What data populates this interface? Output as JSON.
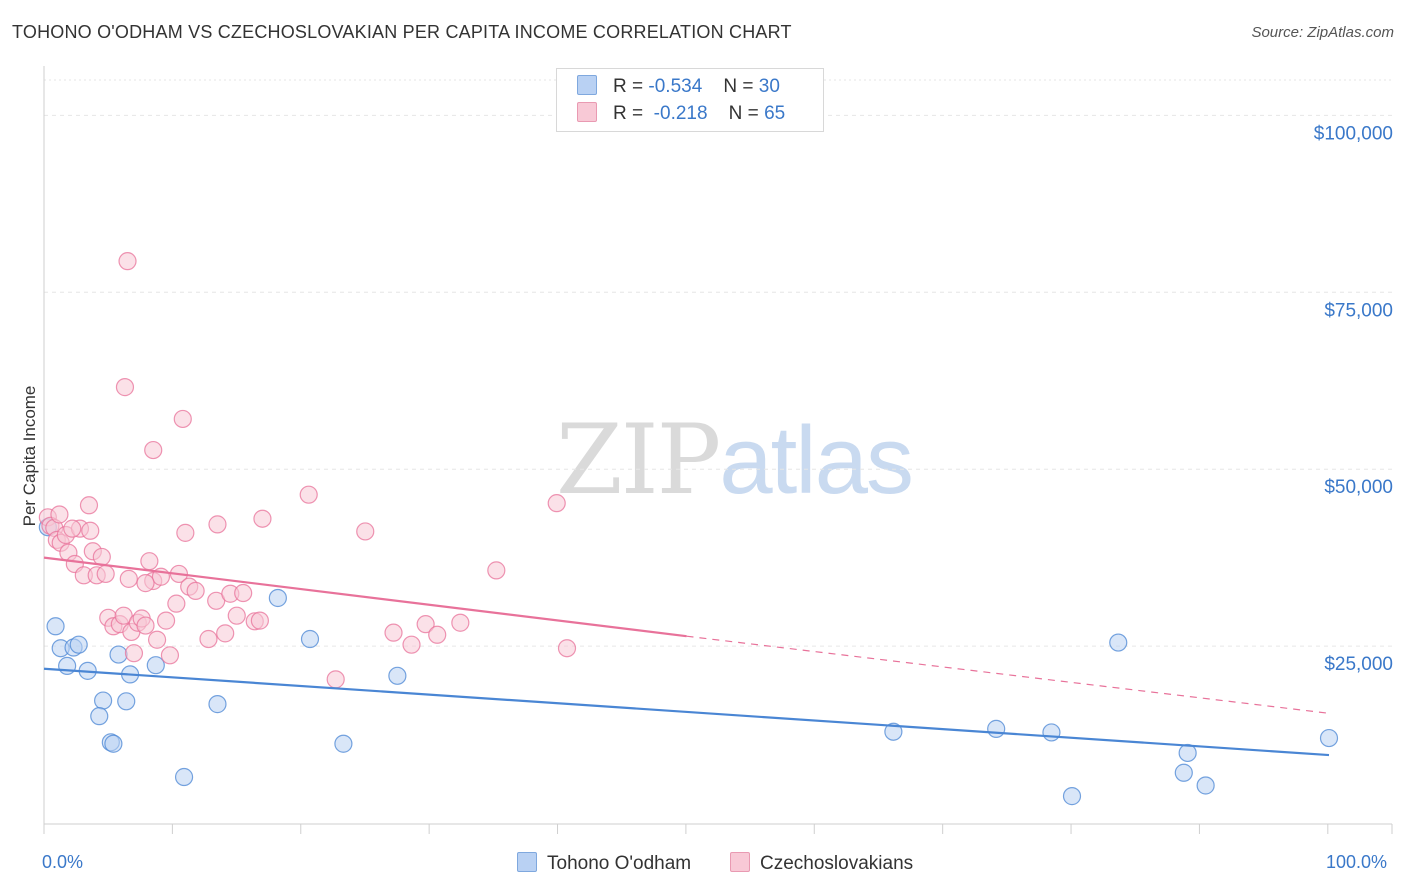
{
  "header": {
    "title": "TOHONO O'ODHAM VS CZECHOSLOVAKIAN PER CAPITA INCOME CORRELATION CHART",
    "source": "Source: ZipAtlas.com"
  },
  "watermark": {
    "zip": "ZIP",
    "atlas": "atlas"
  },
  "legend_top": {
    "rows": [
      {
        "r_label": "R =",
        "r_value": "-0.534",
        "n_label": "N =",
        "n_value": "30",
        "color": "#4a86d4"
      },
      {
        "r_label": "R =",
        "r_value": "-0.218",
        "n_label": "N =",
        "n_value": "65",
        "color": "#e8729a"
      }
    ]
  },
  "legend_bottom": {
    "items": [
      {
        "label": "Tohono O'odham",
        "color": "#4a86d4"
      },
      {
        "label": "Czechoslovakians",
        "color": "#e8729a"
      }
    ]
  },
  "chart_data": {
    "type": "scatter",
    "title": "TOHONO O'ODHAM VS CZECHOSLOVAKIAN PER CAPITA INCOME CORRELATION CHART",
    "xlabel": "",
    "ylabel": "Per Capita Income",
    "xlim": [
      0,
      100
    ],
    "ylim": [
      0,
      105000
    ],
    "x_tick_labels": {
      "min": "0.0%",
      "max": "100.0%"
    },
    "y_ticks": [
      {
        "value": 25000,
        "label": "$25,000"
      },
      {
        "value": 50000,
        "label": "$50,000"
      },
      {
        "value": 75000,
        "label": "$75,000"
      },
      {
        "value": 100000,
        "label": "$100,000"
      }
    ],
    "grid": true,
    "series": [
      {
        "name": "Tohono O'odham",
        "color": "#4a86d4",
        "fill": "#b9d1f3",
        "points": [
          [
            0.3,
            41800
          ],
          [
            0.9,
            27800
          ],
          [
            1.3,
            24700
          ],
          [
            1.8,
            22200
          ],
          [
            2.3,
            24800
          ],
          [
            2.7,
            25200
          ],
          [
            3.4,
            21500
          ],
          [
            4.6,
            17300
          ],
          [
            4.3,
            15100
          ],
          [
            5.2,
            11400
          ],
          [
            5.4,
            11200
          ],
          [
            5.8,
            23800
          ],
          [
            6.4,
            17200
          ],
          [
            6.7,
            21000
          ],
          [
            8.7,
            22300
          ],
          [
            10.9,
            6500
          ],
          [
            13.5,
            16800
          ],
          [
            18.2,
            31800
          ],
          [
            20.7,
            26000
          ],
          [
            23.3,
            11200
          ],
          [
            27.5,
            20800
          ],
          [
            83.6,
            25500
          ],
          [
            66.1,
            12900
          ],
          [
            74.1,
            13300
          ],
          [
            78.4,
            12800
          ],
          [
            80.0,
            3800
          ],
          [
            88.7,
            7100
          ],
          [
            89.0,
            9900
          ],
          [
            90.4,
            5300
          ],
          [
            100.0,
            12000
          ]
        ],
        "trend": {
          "x": [
            0,
            100
          ],
          "y": [
            21800,
            9600
          ],
          "dashed_to": null
        }
      },
      {
        "name": "Czechoslovakians",
        "color": "#e8729a",
        "fill": "#f8c9d6",
        "points": [
          [
            0.3,
            43200
          ],
          [
            0.5,
            42000
          ],
          [
            0.8,
            41700
          ],
          [
            1.0,
            40000
          ],
          [
            1.3,
            39600
          ],
          [
            1.7,
            40700
          ],
          [
            1.9,
            38200
          ],
          [
            2.4,
            36600
          ],
          [
            2.8,
            41600
          ],
          [
            3.1,
            35000
          ],
          [
            3.5,
            44900
          ],
          [
            3.8,
            38400
          ],
          [
            4.1,
            35000
          ],
          [
            4.5,
            37600
          ],
          [
            4.8,
            35200
          ],
          [
            5.0,
            29000
          ],
          [
            5.4,
            27800
          ],
          [
            5.9,
            28100
          ],
          [
            6.2,
            29300
          ],
          [
            6.6,
            34500
          ],
          [
            6.8,
            27000
          ],
          [
            7.0,
            24000
          ],
          [
            7.3,
            28300
          ],
          [
            7.6,
            28900
          ],
          [
            7.9,
            27900
          ],
          [
            8.2,
            37000
          ],
          [
            8.5,
            34200
          ],
          [
            8.8,
            25900
          ],
          [
            9.1,
            34800
          ],
          [
            9.5,
            28600
          ],
          [
            9.8,
            23700
          ],
          [
            10.3,
            31000
          ],
          [
            10.5,
            35200
          ],
          [
            11.0,
            41000
          ],
          [
            11.3,
            33400
          ],
          [
            11.8,
            32800
          ],
          [
            12.8,
            26000
          ],
          [
            13.4,
            31400
          ],
          [
            14.1,
            26800
          ],
          [
            14.5,
            32400
          ],
          [
            15.0,
            29300
          ],
          [
            15.5,
            32500
          ],
          [
            16.4,
            28500
          ],
          [
            16.8,
            28600
          ],
          [
            17.0,
            43000
          ],
          [
            20.6,
            46400
          ],
          [
            22.7,
            20300
          ],
          [
            25.0,
            41200
          ],
          [
            27.2,
            26900
          ],
          [
            28.6,
            25200
          ],
          [
            29.7,
            28100
          ],
          [
            30.6,
            26600
          ],
          [
            32.4,
            28300
          ],
          [
            35.2,
            35700
          ],
          [
            39.9,
            45200
          ],
          [
            40.7,
            24700
          ],
          [
            6.3,
            61600
          ],
          [
            6.5,
            79400
          ],
          [
            8.5,
            52700
          ],
          [
            10.8,
            57100
          ],
          [
            13.5,
            42200
          ],
          [
            7.9,
            33900
          ],
          [
            3.6,
            41300
          ],
          [
            2.2,
            41600
          ],
          [
            1.2,
            43600
          ]
        ],
        "trend": {
          "x": [
            0,
            50
          ],
          "y": [
            37500,
            26400
          ],
          "dashed_to": {
            "x": 100,
            "y": 15500
          }
        }
      }
    ]
  }
}
